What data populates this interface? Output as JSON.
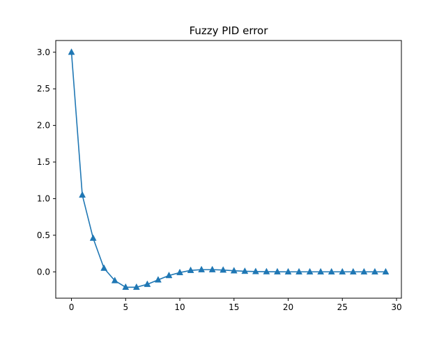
{
  "chart_data": {
    "type": "line",
    "title": "Fuzzy PID error",
    "xlabel": "",
    "ylabel": "",
    "xlim": [
      -1.45,
      30.45
    ],
    "ylim": [
      -0.36,
      3.16
    ],
    "x_ticks": [
      0,
      5,
      10,
      15,
      20,
      25,
      30
    ],
    "y_ticks": [
      0.0,
      0.5,
      1.0,
      1.5,
      2.0,
      2.5,
      3.0
    ],
    "x_tick_labels": [
      "0",
      "5",
      "10",
      "15",
      "20",
      "25",
      "30"
    ],
    "y_tick_labels": [
      "0.0",
      "0.5",
      "1.0",
      "1.5",
      "2.0",
      "2.5",
      "3.0"
    ],
    "grid": false,
    "series": [
      {
        "marker": "triangle-up",
        "color": "#1f77b4",
        "x": [
          0,
          1,
          2,
          3,
          4,
          5,
          6,
          7,
          8,
          9,
          10,
          11,
          12,
          13,
          14,
          15,
          16,
          17,
          18,
          19,
          20,
          21,
          22,
          23,
          24,
          25,
          26,
          27,
          28,
          29
        ],
        "values": [
          3.0,
          1.05,
          0.46,
          0.05,
          -0.12,
          -0.21,
          -0.21,
          -0.17,
          -0.11,
          -0.05,
          -0.01,
          0.02,
          0.03,
          0.03,
          0.025,
          0.015,
          0.008,
          0.004,
          0.002,
          0.001,
          0.0,
          0.0,
          0.0,
          0.0,
          0.0,
          0.0,
          0.0,
          0.0,
          0.0,
          0.0
        ]
      }
    ]
  }
}
